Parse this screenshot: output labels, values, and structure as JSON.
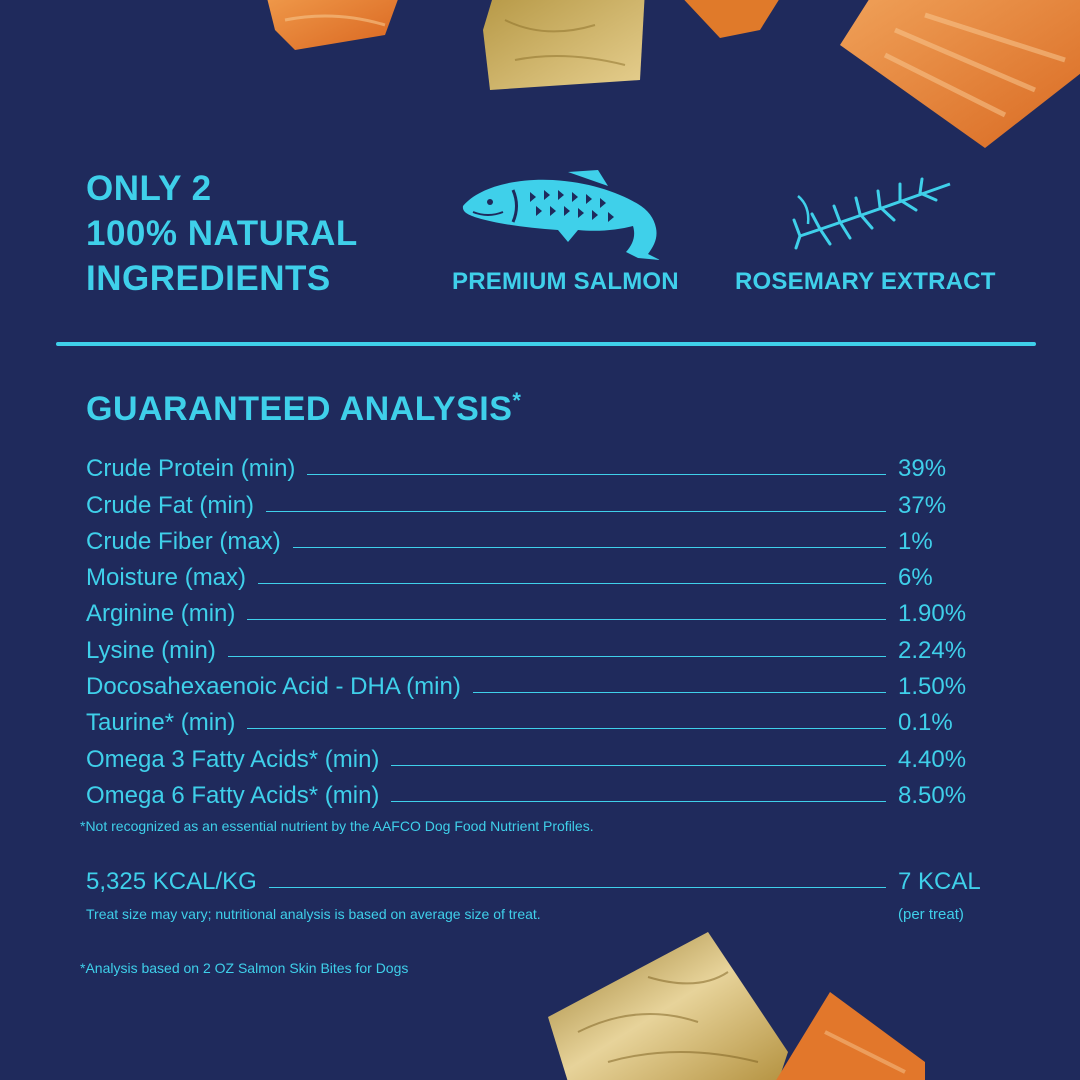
{
  "header": {
    "title_lines": [
      "ONLY 2",
      "100% NATURAL",
      "INGREDIENTS"
    ]
  },
  "ingredients": [
    {
      "label": "PREMIUM SALMON",
      "icon": "salmon-icon"
    },
    {
      "label": "ROSEMARY EXTRACT",
      "icon": "rosemary-icon"
    }
  ],
  "analysis": {
    "title": "GUARANTEED ANALYSIS",
    "title_mark": "*",
    "rows": [
      {
        "name": "Crude Protein (min)",
        "value": "39%"
      },
      {
        "name": "Crude Fat (min)",
        "value": "37%"
      },
      {
        "name": "Crude Fiber (max)",
        "value": "1%"
      },
      {
        "name": "Moisture (max)",
        "value": "6%"
      },
      {
        "name": "Arginine (min)",
        "value": "1.90%"
      },
      {
        "name": "Lysine (min)",
        "value": "2.24%"
      },
      {
        "name": "Docosahexaenoic Acid - DHA (min)",
        "value": "1.50%"
      },
      {
        "name": "Taurine* (min)",
        "value": "0.1%"
      },
      {
        "name": "Omega 3 Fatty Acids* (min)",
        "value": "4.40%"
      },
      {
        "name": "Omega 6 Fatty Acids* (min)",
        "value": "8.50%"
      }
    ],
    "footnote": "*Not recognized as an essential nutrient by the AAFCO Dog Food Nutrient Profiles."
  },
  "calories": {
    "per_kg": "5,325 KCAL/KG",
    "per_treat": "7 KCAL",
    "per_treat_unit": "(per treat)",
    "size_note": "Treat size may vary; nutritional analysis is based on average size of treat."
  },
  "basis_note": "*Analysis based on 2 OZ Salmon Skin Bites for Dogs",
  "colors": {
    "background": "#1f2a5c",
    "accent": "#3fd0ea",
    "treat_orange": "#e8782a",
    "treat_skin": "#c9a24a"
  }
}
